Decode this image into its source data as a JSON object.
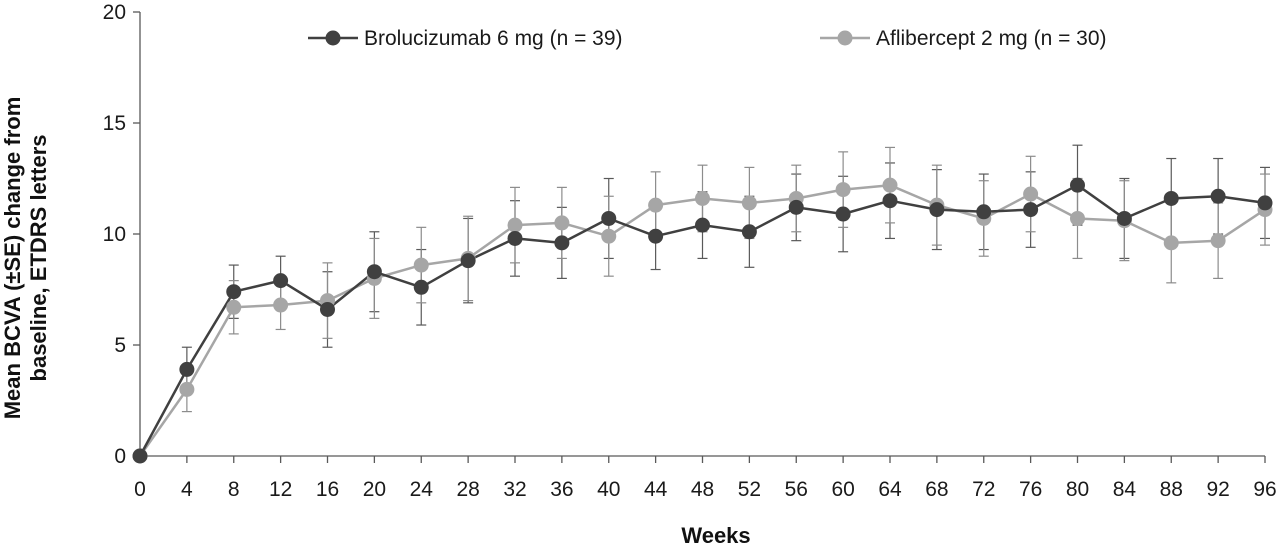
{
  "chart_data": {
    "type": "line",
    "title": "",
    "xlabel": "Weeks",
    "ylabel_lines": [
      "Mean BCVA (±SE) change from",
      "baseline, ETDRS letters"
    ],
    "xlim": [
      0,
      96
    ],
    "ylim": [
      0,
      20
    ],
    "x_ticks": [
      "0",
      "4",
      "8",
      "12",
      "16",
      "20",
      "24",
      "28",
      "32",
      "36",
      "40",
      "44",
      "48",
      "52",
      "56",
      "60",
      "64",
      "68",
      "72",
      "76",
      "80",
      "84",
      "88",
      "92",
      "96"
    ],
    "y_ticks": [
      "0",
      "5",
      "10",
      "15",
      "20"
    ],
    "x": [
      0,
      4,
      8,
      12,
      16,
      20,
      24,
      28,
      32,
      36,
      40,
      44,
      48,
      52,
      56,
      60,
      64,
      68,
      72,
      76,
      80,
      84,
      88,
      92,
      96
    ],
    "grid": false,
    "legend_position": "top",
    "series": [
      {
        "name": "Brolucizumab 6 mg (n = 39)",
        "color": "#404040",
        "values": [
          0,
          3.9,
          7.4,
          7.9,
          6.6,
          8.3,
          7.6,
          8.8,
          9.8,
          9.6,
          10.7,
          9.9,
          10.4,
          10.1,
          11.2,
          10.9,
          11.5,
          11.1,
          11.0,
          11.1,
          12.2,
          10.7,
          11.6,
          11.7,
          11.4
        ],
        "se": [
          0,
          1.0,
          1.2,
          1.1,
          1.7,
          1.8,
          1.7,
          1.9,
          1.7,
          1.6,
          1.8,
          1.5,
          1.5,
          1.6,
          1.5,
          1.7,
          1.7,
          1.8,
          1.7,
          1.7,
          1.8,
          1.8,
          1.8,
          1.7,
          1.6
        ]
      },
      {
        "name": "Aflibercept 2 mg (n = 30)",
        "color": "#a6a6a6",
        "values": [
          0,
          3.0,
          6.7,
          6.8,
          7.0,
          8.0,
          8.6,
          8.9,
          10.4,
          10.5,
          9.9,
          11.3,
          11.6,
          11.4,
          11.6,
          12.0,
          12.2,
          11.3,
          10.7,
          11.8,
          10.7,
          10.6,
          9.6,
          9.7,
          11.1
        ]
      }
    ]
  }
}
